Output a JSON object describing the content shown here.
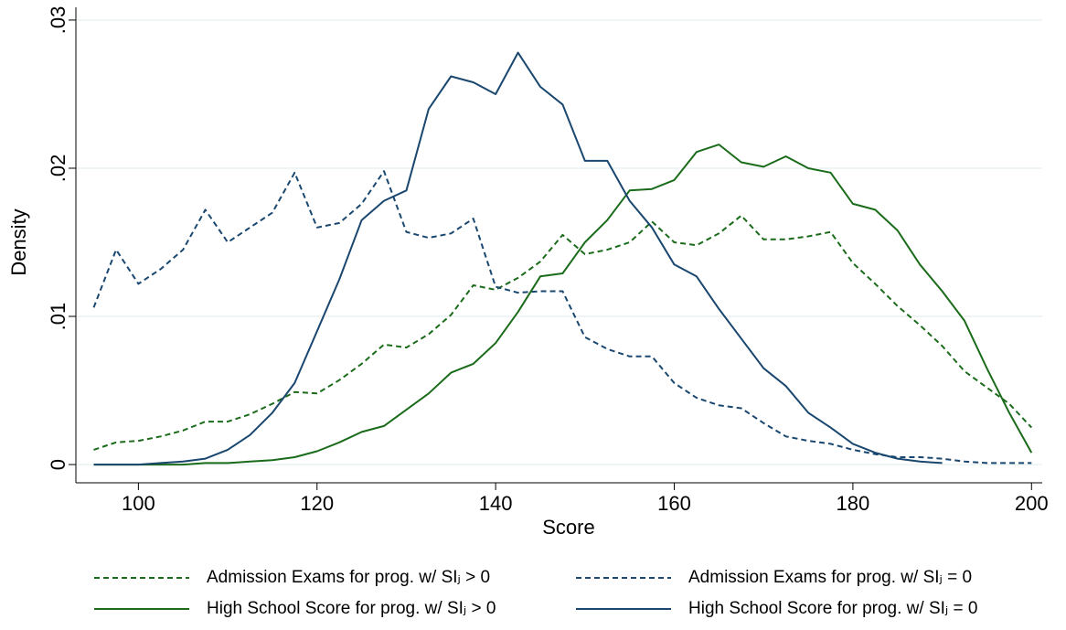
{
  "chart_data": {
    "type": "line",
    "x_label": "Score",
    "y_label": "Density",
    "x": [
      95,
      97.5,
      100,
      102.5,
      105,
      107.5,
      110,
      112.5,
      115,
      117.5,
      120,
      122.5,
      125,
      127.5,
      130,
      132.5,
      135,
      137.5,
      140,
      142.5,
      145,
      147.5,
      150,
      152.5,
      155,
      157.5,
      160,
      162.5,
      165,
      167.5,
      170,
      172.5,
      175,
      177.5,
      180,
      182.5,
      185,
      187.5,
      190,
      192.5,
      195,
      197.5,
      200
    ],
    "series": [
      {
        "name": "Admission Exams for prog. w/ SIⱼ > 0",
        "color": "#1a6b1a",
        "style": "dashed",
        "values": [
          0.001,
          0.0015,
          0.0016,
          0.0019,
          0.0023,
          0.0029,
          0.0029,
          0.0034,
          0.0041,
          0.0049,
          0.0048,
          0.0057,
          0.0068,
          0.0081,
          0.0079,
          0.0088,
          0.0101,
          0.0121,
          0.0118,
          0.0126,
          0.0137,
          0.0155,
          0.0142,
          0.0145,
          0.015,
          0.0164,
          0.015,
          0.0148,
          0.0156,
          0.0168,
          0.0152,
          0.0152,
          0.0154,
          0.0157,
          0.0136,
          0.0122,
          0.0107,
          0.0094,
          0.008,
          0.0063,
          0.0052,
          0.0041,
          0.0025
        ]
      },
      {
        "name": "Admission Exams for prog. w/ SIⱼ = 0",
        "color": "#1a476f",
        "style": "dashed",
        "values": [
          0.0106,
          0.0145,
          0.0122,
          0.0132,
          0.0145,
          0.0172,
          0.015,
          0.016,
          0.017,
          0.0197,
          0.016,
          0.0163,
          0.0176,
          0.0198,
          0.0157,
          0.0153,
          0.0156,
          0.0166,
          0.012,
          0.0116,
          0.0117,
          0.0117,
          0.0086,
          0.0078,
          0.0073,
          0.0073,
          0.0055,
          0.0045,
          0.004,
          0.0038,
          0.0028,
          0.0019,
          0.0016,
          0.0014,
          0.001,
          0.0007,
          0.0005,
          0.0005,
          0.0004,
          0.0002,
          0.0001,
          0.0001,
          0.0001
        ]
      },
      {
        "name": "High School Score for prog. w/ SIⱼ > 0",
        "color": "#1a6b1a",
        "style": "solid",
        "values": [
          0,
          0,
          0,
          0,
          0,
          0.0001,
          0.0001,
          0.0002,
          0.0003,
          0.0005,
          0.0009,
          0.0015,
          0.0022,
          0.0026,
          0.0037,
          0.0048,
          0.0062,
          0.0068,
          0.0082,
          0.0103,
          0.0127,
          0.0129,
          0.015,
          0.0165,
          0.0185,
          0.0186,
          0.0192,
          0.0211,
          0.0216,
          0.0204,
          0.0201,
          0.0208,
          0.02,
          0.0197,
          0.0176,
          0.0172,
          0.0158,
          0.0135,
          0.0117,
          0.0097,
          0.0065,
          0.0035,
          0.0008
        ]
      },
      {
        "name": "High School Score for prog. w/ SIⱼ = 0",
        "color": "#1a476f",
        "style": "solid",
        "values": [
          0,
          0,
          0,
          0.0001,
          0.0002,
          0.0004,
          0.001,
          0.002,
          0.0035,
          0.0055,
          0.009,
          0.0125,
          0.0165,
          0.0178,
          0.0185,
          0.024,
          0.0262,
          0.0258,
          0.025,
          0.0278,
          0.0255,
          0.0243,
          0.0205,
          0.0205,
          0.0178,
          0.016,
          0.0135,
          0.0127,
          0.0105,
          0.0085,
          0.0065,
          0.0053,
          0.0035,
          0.0025,
          0.0014,
          0.0008,
          0.0004,
          0.0002,
          0.0001,
          null,
          null,
          null,
          null
        ]
      }
    ],
    "xlim": [
      93,
      201.2
    ],
    "ylim": [
      -0.00123,
      0.03086
    ],
    "xticks": [
      100,
      120,
      140,
      160,
      180,
      200
    ],
    "yticks": [
      0,
      {
        "value": 0.01,
        "label": ".01"
      },
      {
        "value": 0.02,
        "label": ".02"
      },
      {
        "value": 0.03,
        "label": ".03"
      }
    ],
    "grid": true,
    "legend": "bottom"
  }
}
